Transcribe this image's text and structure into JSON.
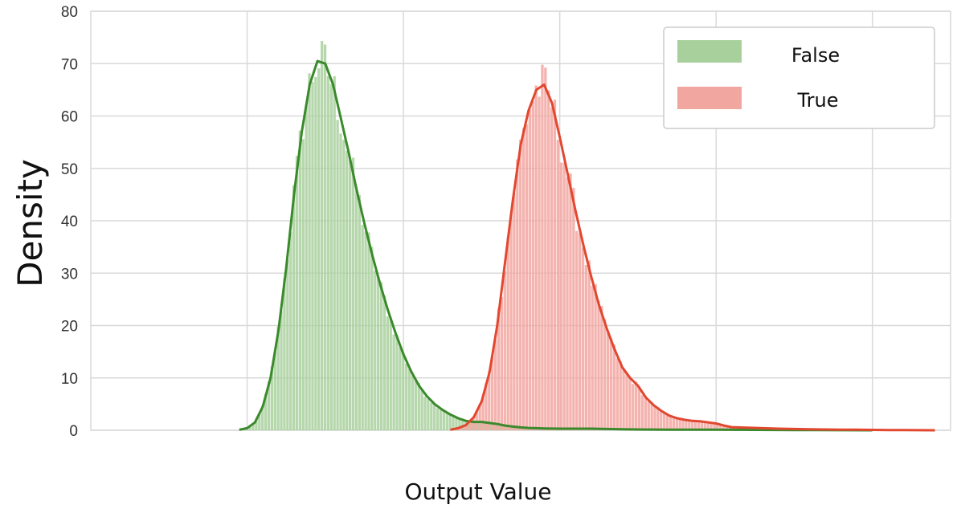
{
  "chart_data": {
    "type": "histogram",
    "title": "",
    "xlabel": "Output Value",
    "ylabel": "Density",
    "ylim": [
      0,
      80
    ],
    "yticks": [
      0,
      10,
      20,
      30,
      40,
      50,
      60,
      70,
      80
    ],
    "xtick_labels_shown": false,
    "grid": true,
    "legend_position": "top-right",
    "colors": {
      "false_bar": "#a8d09c",
      "false_line": "#3a8a2c",
      "true_bar": "#f2a6a0",
      "true_line": "#e2472f",
      "grid": "#d9d9d9"
    },
    "series": [
      {
        "name": "False",
        "kde_x": [
          0.19,
          0.2,
          0.21,
          0.22,
          0.23,
          0.24,
          0.25,
          0.26,
          0.27,
          0.28,
          0.29,
          0.3,
          0.31,
          0.32,
          0.33,
          0.34,
          0.35,
          0.36,
          0.37,
          0.38,
          0.39,
          0.4,
          0.41,
          0.42,
          0.43,
          0.44,
          0.45,
          0.46,
          0.47,
          0.48,
          0.49,
          0.5,
          0.51,
          0.52,
          0.53,
          0.54,
          0.55,
          0.56,
          0.57,
          0.58,
          0.6,
          0.62,
          0.64,
          0.66,
          0.68,
          0.7,
          0.74,
          0.8,
          0.9,
          1.0
        ],
        "kde_y": [
          0.1,
          0.4,
          1.5,
          4.5,
          10,
          19,
          31,
          45,
          57,
          66,
          70.5,
          70,
          66,
          59.5,
          53,
          46,
          39.5,
          33.5,
          28,
          23,
          18.5,
          14.5,
          11.2,
          8.5,
          6.5,
          5.0,
          3.9,
          3.0,
          2.3,
          1.8,
          1.6,
          1.6,
          1.4,
          1.2,
          0.9,
          0.7,
          0.55,
          0.45,
          0.4,
          0.35,
          0.3,
          0.3,
          0.3,
          0.25,
          0.2,
          0.15,
          0.1,
          0.1,
          0.05,
          0.0
        ]
      },
      {
        "name": "True",
        "kde_x": [
          0.46,
          0.47,
          0.48,
          0.49,
          0.5,
          0.51,
          0.52,
          0.53,
          0.54,
          0.55,
          0.56,
          0.57,
          0.58,
          0.59,
          0.6,
          0.61,
          0.62,
          0.63,
          0.64,
          0.65,
          0.66,
          0.67,
          0.68,
          0.69,
          0.7,
          0.71,
          0.72,
          0.73,
          0.74,
          0.75,
          0.76,
          0.77,
          0.78,
          0.79,
          0.8,
          0.81,
          0.82,
          0.84,
          0.86,
          0.88,
          0.9,
          0.92,
          0.94,
          0.96,
          0.98,
          1.0,
          1.02,
          1.04,
          1.06,
          1.08
        ],
        "kde_y": [
          0.1,
          0.4,
          1.0,
          2.5,
          5.5,
          11,
          20,
          32,
          44,
          54.5,
          61,
          65,
          66,
          62.5,
          56,
          49,
          42,
          35.5,
          29.5,
          24,
          19.5,
          15.5,
          12,
          10,
          8.5,
          6.3,
          4.8,
          3.7,
          2.8,
          2.3,
          2.0,
          1.8,
          1.7,
          1.5,
          1.3,
          0.9,
          0.6,
          0.5,
          0.4,
          0.3,
          0.25,
          0.2,
          0.15,
          0.12,
          0.1,
          0.08,
          0.05,
          0.03,
          0.02,
          0.0
        ]
      }
    ]
  }
}
